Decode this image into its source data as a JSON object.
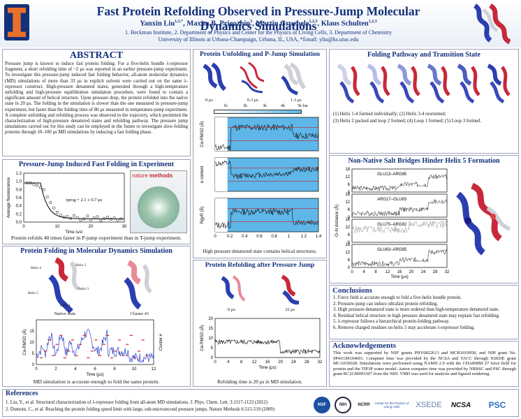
{
  "header": {
    "title": "Fast Protein Refolding Observed in Pressure-Jump Molecular Dynamics Simulations",
    "authors_main": "Yanxin Liu",
    "authors_rest": "Maxim B. Prigozhin",
    "mid": ", Martin Gruebele",
    "last": ", Klaus Schulten",
    "sup1": "1,2,*",
    "sup2": "3",
    "sup3": "1,2,3",
    "sup4": "1,2,3",
    "sep1": ", ",
    "affiliation": "1. Beckman Institute, 2. Department of Physics and Center for the Physics of Living Cells, 3. Department of Chemistry",
    "university": "University of Illinois at Urbana-Champaign, Urbana, IL, USA, *Email: yliu@ks.uiuc.edu"
  },
  "abstract": {
    "heading": "ABSTRACT",
    "text": "Pressure jump is known to induce fast protein folding. For a five-helix bundle λ-repressor fragment, a short refolding time of ~2 μs was reported in an earlier pressure-jump experiment. To investigate this pressure-jump induced fast folding behavior, all-atom molecular dynamics (MD) simulations of more than 33 μs in explicit solvent were carried out on the same λ-repressor construct. High-pressure denatured states, generated through a high-temperature unfolding and high-pressure equilibration simulation procedure, were found to contain a significant amount of helical structure. Upon pressure drop, the protein refolded into the native state in 20 μs. The folding in the simulation is slower than the one measured in pressure-jump experiment, but faster than the folding time of 80 μs measured in temperature-jump experiment. A complete unfolding and refolding process was observed in the trajectory, which permitted the characterization of high-pressure denatured states and refolding pathway. The pressure jump simulations carried out for this study can be employed in the future to investigate slow-folding proteins through 10–100 μs MD simulations by inducing a fast folding phase."
  },
  "pjump": {
    "heading": "Pressure-Jump Induced Fast Folding in Experiment",
    "ylabel": "Average fluorescence",
    "xlabel": "Time (μs)",
    "tau": "τ",
    "tausub": "prog",
    "tauval": " = 2.1 ± 0.7 μs",
    "journal": "nature",
    "journal2": "methods",
    "caption": "Protein refolds 40 times faster in P-jump experiment than in T-jump experiment."
  },
  "mdfold": {
    "heading": "Protein Folding in Molecular Dynamics Simulation",
    "native": "Native state",
    "cluster": "Cluster #1",
    "h1": "Helix 1",
    "h2": "Helix 2",
    "h3": "Helix 3",
    "h4": "Helix 4",
    "h5": "Helix 5",
    "ylabel": "Cα-RMSD (Å)",
    "y2label": "Cluster #",
    "xlabel": "Time (μs)",
    "caption": "MD simulation is accurate enough to fold the same protein."
  },
  "unfold": {
    "heading": "Protein Unfolding and P-Jump Simulation",
    "t0": "0 μs",
    "t1": "0.3 μs",
    "t2": "1.3 μs",
    "bar": [
      "1k",
      "2k",
      "3k",
      "4k",
      "5k bar"
    ],
    "y1": "Cα-RMSD (Å)",
    "y2": "α content",
    "y3": "RgyR (Å)",
    "xlabel": "Time (μs)",
    "caption": "High pressure denatured state contains helical structures."
  },
  "refold": {
    "heading": "Protein Refolding after Pressure Jump",
    "t0": "0 μs",
    "t1": "32 μs",
    "ylabel": "Cα-RMSD (Å)",
    "xlabel": "Time (μs)",
    "caption": "Refolding time is 20 μs in MD simulation."
  },
  "pathway": {
    "heading": "Folding Pathway and Transition State",
    "l1": "(1) Helix 1-4 formed individually; (2) Helix 3-4 reoriented;",
    "l2": "(3) Helix 2 packed and loop 2 formed; (4)  Loop 1 formed; (5) Loop 3 formed."
  },
  "salt": {
    "heading": "Non-Native Salt Bridges Hinder Helix 5 Formation",
    "panels": [
      "GLU13–ARG85",
      "ARG17–GLU83",
      "GLU75–ARG82",
      "GLU83–ARG85"
    ],
    "ylabel": "O–N distance (Å)",
    "xlabel": "Time (μs)"
  },
  "conclusions": {
    "heading": "Conclusions",
    "items": [
      "1. Force field is accurate enough to fold a five-helix bundle protein.",
      "2. Pressure-jump can induce ultrafast protein refolding.",
      "3. High pressure denatured state is more ordered than high-temperature denatured state.",
      "4. Residual  helical structure in high pressure denatured state may explain fast refolding.",
      "5. λ-repressor follows a hierarchical protein-folding pathway.",
      "6. Remove charged residues on helix 5 may accelerate λ-repressor folding."
    ]
  },
  "ack": {
    "heading": "Acknowledgements",
    "text": "This work was supported by NSF grants PHY0822613 and MCB1019958, and NIH grant No. 9P41GM104601. Computer time was provided by the NCSA and TACC  through XSEDE grant MCA93S028. Simulations were performed using NAMD 2.9 with the CHARMM 27 force field for protein and the TIP3P water model. Anton computer time was provided by NRBSC and PSC through grant RC2GM093307 from the NIH. VMD was used for analysis and figured rendering."
  },
  "refs": {
    "heading": "References",
    "r1": "1. Liu, Y., et al. Structural characterization of λ-repressor folding from all-atom MD simulations. J. Phys. Chem. Lett. 3:1117-1123 (2012)",
    "r2": "2. Dumont, C., et al. Reaching the protein folding speed limit with large, sub-microsecond pressure jumps. Nature Methods 6:515-519 (2009)"
  },
  "logos": {
    "a": "NSF",
    "b": "NIH",
    "c": "NCSA",
    "d": "XSEDE",
    "e": "PSC",
    "f": "Center for the Physics of Living Cells",
    "g": "NCRR"
  },
  "colors": {
    "title": "#13307a",
    "panelBorder": "#9aa0b8",
    "plotBg": "#5fb6e8"
  },
  "chart_data": [
    {
      "type": "scatter",
      "title": "",
      "xlabel": "Time (μs)",
      "ylabel": "Average fluorescence",
      "xlim": [
        0,
        30
      ],
      "ylim": [
        0.0,
        1.2
      ],
      "x": [
        1,
        2,
        3,
        4,
        5,
        6,
        7,
        8,
        9,
        10,
        11,
        12,
        13,
        14,
        15,
        16,
        17,
        18,
        19,
        20,
        21,
        22,
        23,
        24,
        25,
        26,
        27,
        28,
        29
      ],
      "y": [
        0.96,
        0.96,
        0.92,
        0.9,
        0.85,
        0.8,
        0.62,
        0.48,
        0.35,
        0.24,
        0.17,
        0.12,
        0.14,
        0.09,
        0.16,
        0.11,
        0.05,
        0.08,
        0.15,
        0.06,
        0.1,
        0.13,
        0.04,
        0.09,
        0.12,
        0.07,
        0.1,
        0.05,
        0.08
      ]
    },
    {
      "type": "line",
      "title": "",
      "xlabel": "Time (μs)",
      "ylabel": "Cα-RMSD (Å)",
      "xlim": [
        0,
        33
      ],
      "ylim": [
        0,
        20
      ]
    },
    {
      "type": "line",
      "title": "",
      "xlabel": "Time (μs)",
      "ylabel": "Cα-RMSD (Å)",
      "xlim": [
        0,
        1.4
      ],
      "ylim": [
        0,
        20
      ]
    },
    {
      "type": "line",
      "title": "",
      "xlabel": "Time (μs)",
      "ylabel": "Cα-RMSD (Å)",
      "xlim": [
        0,
        32
      ],
      "ylim": [
        0,
        20
      ]
    }
  ]
}
